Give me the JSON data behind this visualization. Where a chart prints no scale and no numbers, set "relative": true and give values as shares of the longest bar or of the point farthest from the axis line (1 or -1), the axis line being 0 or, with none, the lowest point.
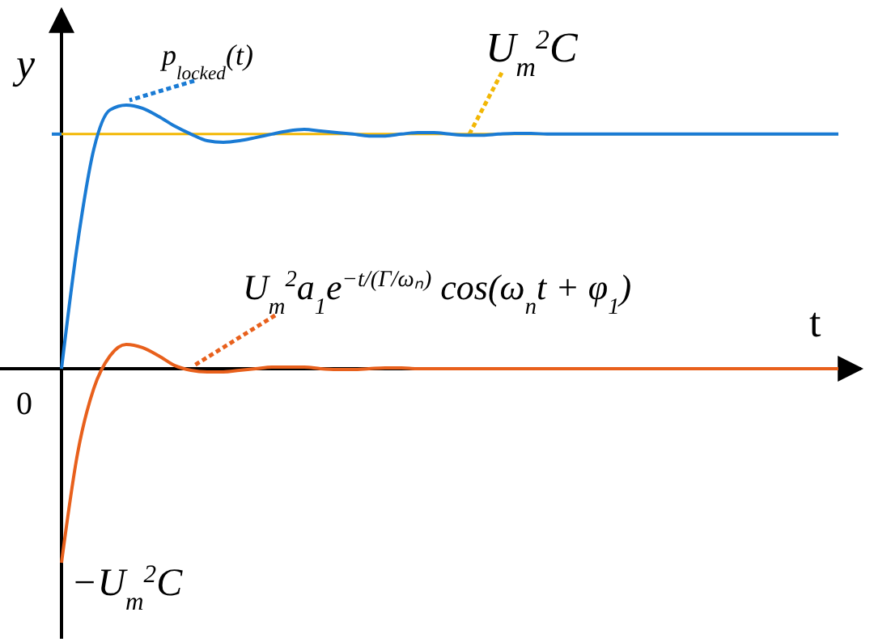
{
  "chart_data": {
    "type": "line",
    "relative": true,
    "xlabel": "t",
    "ylabel": "y",
    "categories": [
      null,
      null,
      null,
      null,
      null,
      null,
      null,
      null,
      null,
      null,
      null,
      null,
      null,
      null,
      null,
      null,
      null,
      null,
      null,
      null,
      null,
      null,
      null,
      null,
      null,
      null,
      null,
      null,
      null,
      null,
      null,
      null,
      null,
      null,
      null,
      null,
      null,
      null,
      null,
      null,
      null,
      null,
      null,
      null,
      null,
      null,
      null,
      null,
      null
    ],
    "series": [
      {
        "name": "p$_{locked}$(t)",
        "color": "#1a7bd4",
        "values": [
          0,
          0.479,
          0.834,
          0.982,
          1,
          0.988,
          0.957,
          0.92,
          0.89,
          0.865,
          0.859,
          0.865,
          0.877,
          0.89,
          0.902,
          0.908,
          0.902,
          0.896,
          0.89,
          0.883,
          0.883,
          0.89,
          0.896,
          0.896,
          0.89,
          0.886,
          0.886,
          0.89,
          0.893,
          0.893,
          0.89,
          0.89,
          0.89,
          0.89,
          0.89,
          0.89,
          0.89,
          0.89,
          0.89,
          0.89,
          0.89,
          0.89,
          0.89,
          0.89,
          0.89,
          0.89,
          0.89,
          0.89,
          0.89
        ]
      },
      {
        "name": "U$_{m}$$^{2}$a$_{1}$e$^{−t/(Γ/ωₙ)}$ cos(ω$_{n}$t + φ$_{1}$)",
        "color": "#e8601c",
        "values": [
          -0.736,
          -0.319,
          -0.074,
          0.049,
          0.092,
          0.08,
          0.049,
          0.012,
          -0.006,
          -0.012,
          -0.012,
          -0.006,
          0,
          0.006,
          0.006,
          0.006,
          0,
          -0.003,
          -0.003,
          0,
          0.003,
          0.003,
          0,
          0,
          0,
          0,
          0,
          0,
          0,
          0,
          0,
          0,
          0,
          0,
          0,
          0,
          0,
          0,
          0,
          0,
          0,
          0,
          0,
          0,
          0,
          0,
          0,
          0,
          0
        ]
      }
    ],
    "ref_lines": [
      {
        "axis": "y",
        "value": 0.89,
        "label": "U$_{m}$$^{2}$C",
        "color": "#f2b705"
      }
    ],
    "annotations": [
      "−U$_{m}$$^{2}$C",
      "0"
    ],
    "marker": "none",
    "line_style": "solid",
    "grid": false,
    "legend": false
  }
}
